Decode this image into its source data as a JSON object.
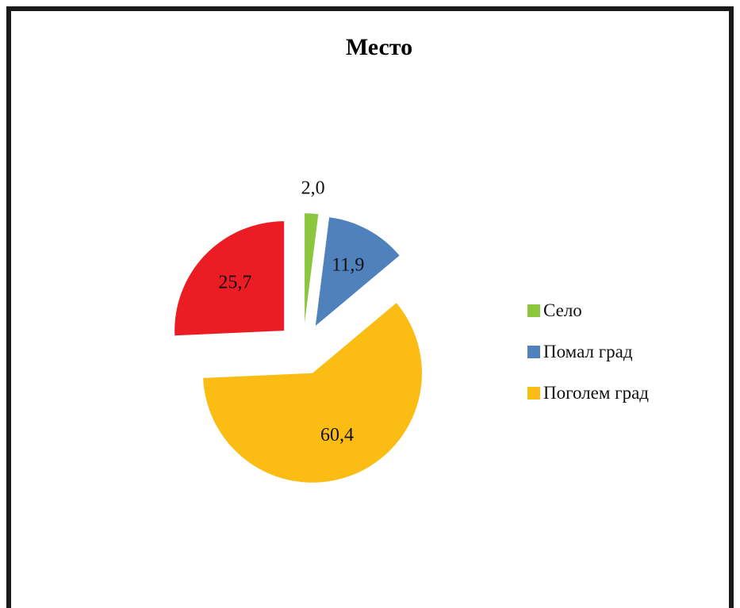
{
  "chart_data": {
    "type": "pie",
    "title": "Место",
    "categories": [
      "Село",
      "Помал град",
      "Поголем град",
      null
    ],
    "values": [
      2.0,
      11.9,
      60.4,
      25.7
    ],
    "value_labels": [
      "2,0",
      "11,9",
      "60,4",
      "25,7"
    ],
    "colors": [
      "#8cc63e",
      "#4f81bd",
      "#fbbd14",
      "#ec1c24"
    ],
    "legend": "right"
  }
}
